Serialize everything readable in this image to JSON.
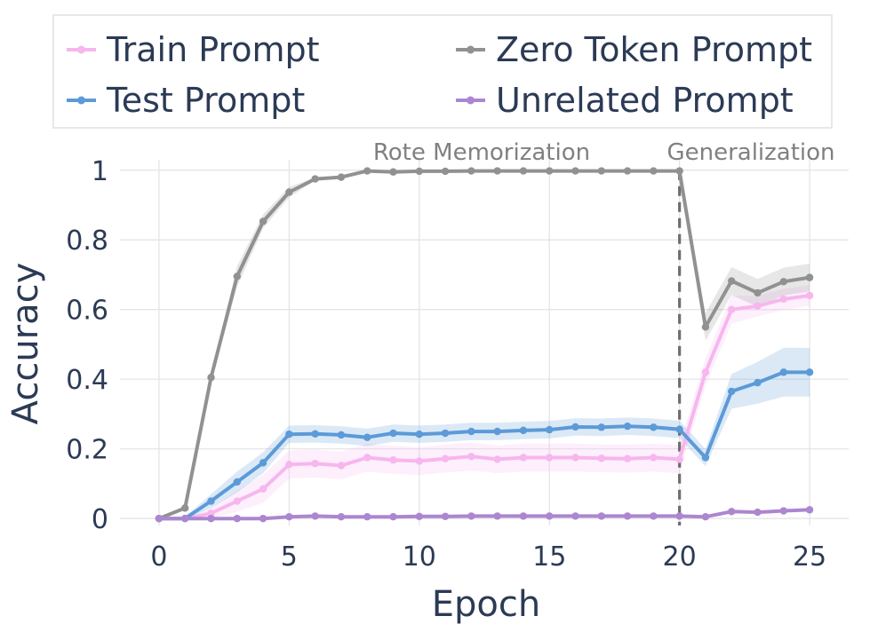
{
  "chart_data": {
    "type": "line",
    "xlabel": "Epoch",
    "ylabel": "Accuracy",
    "xlim": [
      -1.5,
      26.5
    ],
    "ylim": [
      -0.02,
      1.03
    ],
    "x_ticks": [
      0,
      5,
      10,
      15,
      20,
      25
    ],
    "x_tick_labels": [
      "0",
      "5",
      "10",
      "15",
      "20",
      "25"
    ],
    "y_ticks": [
      0,
      0.2,
      0.4,
      0.6,
      0.8,
      1
    ],
    "y_tick_labels": [
      "0",
      "0.2",
      "0.4",
      "0.6",
      "0.8",
      "1"
    ],
    "grid": true,
    "legend": "top",
    "annotations": {
      "phase_left": "Rote Memorization",
      "phase_right": "Generalization",
      "boundary_epoch": 20
    },
    "x": [
      0,
      1,
      2,
      3,
      4,
      5,
      6,
      7,
      8,
      9,
      10,
      11,
      12,
      13,
      14,
      15,
      16,
      17,
      18,
      19,
      20,
      21,
      22,
      23,
      24,
      25
    ],
    "series": [
      {
        "name": "Train Prompt",
        "color": "#f7b6ee",
        "values": [
          0.0,
          0.0,
          0.015,
          0.05,
          0.085,
          0.155,
          0.158,
          0.152,
          0.175,
          0.168,
          0.165,
          0.172,
          0.178,
          0.17,
          0.175,
          0.175,
          0.175,
          0.173,
          0.172,
          0.175,
          0.17,
          0.42,
          0.6,
          0.61,
          0.63,
          0.64
        ],
        "band": [
          0.005,
          0.005,
          0.015,
          0.03,
          0.04,
          0.04,
          0.04,
          0.04,
          0.04,
          0.04,
          0.04,
          0.04,
          0.04,
          0.04,
          0.04,
          0.04,
          0.04,
          0.04,
          0.04,
          0.04,
          0.04,
          0.04,
          0.04,
          0.03,
          0.03,
          0.03
        ]
      },
      {
        "name": "Test Prompt",
        "color": "#5c9ad8",
        "values": [
          0.0,
          0.0,
          0.05,
          0.105,
          0.16,
          0.242,
          0.243,
          0.24,
          0.233,
          0.245,
          0.242,
          0.245,
          0.25,
          0.25,
          0.253,
          0.255,
          0.263,
          0.262,
          0.265,
          0.262,
          0.256,
          0.175,
          0.365,
          0.39,
          0.42,
          0.42
        ],
        "band": [
          0.005,
          0.005,
          0.02,
          0.03,
          0.03,
          0.025,
          0.025,
          0.025,
          0.025,
          0.025,
          0.025,
          0.025,
          0.025,
          0.025,
          0.025,
          0.025,
          0.025,
          0.025,
          0.025,
          0.025,
          0.025,
          0.025,
          0.05,
          0.06,
          0.07,
          0.07
        ]
      },
      {
        "name": "Zero Token Prompt",
        "color": "#919191",
        "values": [
          0.0,
          0.03,
          0.405,
          0.695,
          0.853,
          0.937,
          0.975,
          0.98,
          0.998,
          0.995,
          0.997,
          0.997,
          0.998,
          0.998,
          0.998,
          0.998,
          0.998,
          0.998,
          0.998,
          0.998,
          0.998,
          0.55,
          0.682,
          0.648,
          0.68,
          0.692
        ],
        "band": [
          0.005,
          0.005,
          0.01,
          0.03,
          0.02,
          0.015,
          0.005,
          0.005,
          0.002,
          0.002,
          0.002,
          0.002,
          0.002,
          0.002,
          0.002,
          0.002,
          0.002,
          0.002,
          0.002,
          0.002,
          0.002,
          0.04,
          0.04,
          0.04,
          0.04,
          0.04
        ]
      },
      {
        "name": "Unrelated Prompt",
        "color": "#ac86d0",
        "values": [
          0.0,
          0.0,
          0.0,
          0.0,
          0.0,
          0.005,
          0.007,
          0.005,
          0.005,
          0.005,
          0.006,
          0.006,
          0.007,
          0.007,
          0.007,
          0.007,
          0.007,
          0.007,
          0.007,
          0.007,
          0.007,
          0.005,
          0.02,
          0.018,
          0.022,
          0.025
        ],
        "band": [
          0.002,
          0.002,
          0.002,
          0.002,
          0.002,
          0.002,
          0.002,
          0.002,
          0.002,
          0.002,
          0.002,
          0.002,
          0.002,
          0.002,
          0.002,
          0.002,
          0.002,
          0.002,
          0.002,
          0.002,
          0.002,
          0.002,
          0.003,
          0.003,
          0.003,
          0.003
        ]
      }
    ]
  }
}
